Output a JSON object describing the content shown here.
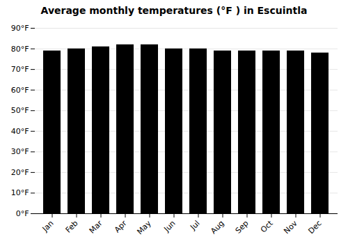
{
  "chart_data": {
    "type": "bar",
    "title": "Average monthly temperatures (°F ) in Escuintla",
    "categories": [
      "Jan",
      "Feb",
      "Mar",
      "Apr",
      "May",
      "Jun",
      "Jul",
      "Aug",
      "Sep",
      "Oct",
      "Nov",
      "Dec"
    ],
    "values": [
      79,
      80,
      81,
      82,
      82,
      80,
      80,
      79,
      79,
      79,
      79,
      78
    ],
    "ylim": [
      0,
      90
    ],
    "yticks": [
      {
        "value": 0,
        "label": "0°F"
      },
      {
        "value": 10,
        "label": "10°F"
      },
      {
        "value": 20,
        "label": "20°F"
      },
      {
        "value": 30,
        "label": "30°F"
      },
      {
        "value": 40,
        "label": "40°F"
      },
      {
        "value": 50,
        "label": "50°F"
      },
      {
        "value": 60,
        "label": "60°F"
      },
      {
        "value": 70,
        "label": "70°F"
      },
      {
        "value": 80,
        "label": "80°F"
      },
      {
        "value": 90,
        "label": "90°F"
      }
    ],
    "grid": true
  }
}
